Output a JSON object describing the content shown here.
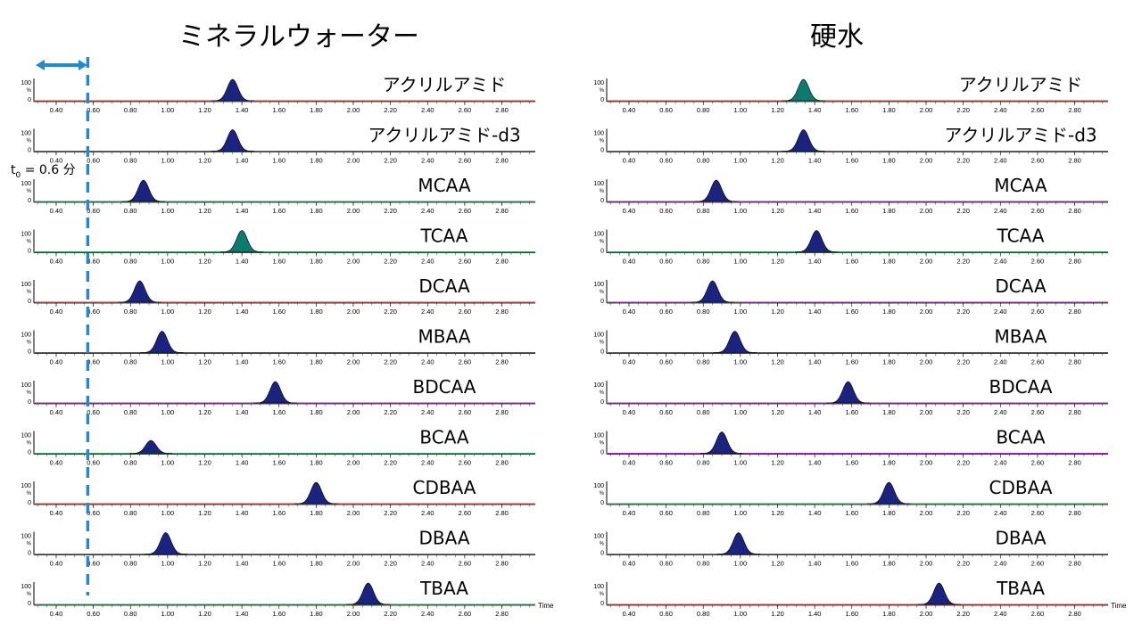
{
  "titles": {
    "left": "ミネラルウォーター",
    "right": "硬水"
  },
  "t0_annotation": {
    "prefix": "t",
    "subscript": "0",
    "text": "= 0.6 分",
    "value_min": 0.6
  },
  "colors": {
    "peak_fill": "#1a237e",
    "peak_fill_alt": "#0e7a6f",
    "baseline_red": "#e53935",
    "baseline_green": "#2e9d5a",
    "noise_violet": "#9c27b0",
    "t0_line": "#1f8ad6"
  },
  "chart_data": [
    {
      "panel": "ミネラルウォーター",
      "type": "line",
      "xlabel": "Time",
      "ylabel": "%",
      "ylim": [
        0,
        100
      ],
      "xlim": [
        0.28,
        2.98
      ],
      "xticks": [
        "0.40",
        "0.60",
        "0.80",
        "1.00",
        "1.20",
        "1.40",
        "1.60",
        "1.80",
        "2.00",
        "2.20",
        "2.40",
        "2.60",
        "2.80"
      ],
      "yticks": [
        "100",
        "0"
      ],
      "series": [
        {
          "name": "アクリルアミド",
          "peak_time": 1.35,
          "peak_height": 100,
          "peak_color": "#1a237e",
          "baseline_color": "#e53935"
        },
        {
          "name": "アクリルアミド-d3",
          "peak_time": 1.35,
          "peak_height": 100,
          "peak_color": "#1a237e",
          "baseline_color": "#e53935"
        },
        {
          "name": "MCAA",
          "peak_time": 0.87,
          "peak_height": 100,
          "peak_color": "#1a237e",
          "baseline_color": "#2e9d5a"
        },
        {
          "name": "TCAA",
          "peak_time": 1.4,
          "peak_height": 100,
          "peak_color": "#0e7a6f",
          "baseline_color": "#2e9d5a"
        },
        {
          "name": "DCAA",
          "peak_time": 0.85,
          "peak_height": 100,
          "peak_color": "#1a237e",
          "baseline_color": "#e53935"
        },
        {
          "name": "MBAA",
          "peak_time": 0.97,
          "peak_height": 100,
          "peak_color": "#1a237e",
          "baseline_color": "#9c27b0"
        },
        {
          "name": "BDCAA",
          "peak_time": 1.58,
          "peak_height": 100,
          "peak_color": "#1a237e",
          "baseline_color": "#9c27b0"
        },
        {
          "name": "BCAA",
          "peak_time": 0.91,
          "peak_height": 60,
          "peak_color": "#1a237e",
          "baseline_color": "#2e9d5a"
        },
        {
          "name": "CDBAA",
          "peak_time": 1.8,
          "peak_height": 100,
          "peak_color": "#1a237e",
          "baseline_color": "#e53935"
        },
        {
          "name": "DBAA",
          "peak_time": 0.99,
          "peak_height": 100,
          "peak_color": "#1a237e",
          "baseline_color": "#e53935"
        },
        {
          "name": "TBAA",
          "peak_time": 2.08,
          "peak_height": 100,
          "peak_color": "#1a237e",
          "baseline_color": "#2e9d5a"
        }
      ]
    },
    {
      "panel": "硬水",
      "type": "line",
      "xlabel": "Time",
      "ylabel": "%",
      "ylim": [
        0,
        100
      ],
      "xlim": [
        0.28,
        2.98
      ],
      "xticks": [
        "0.40",
        "0.60",
        "0.80",
        "1.00",
        "1.20",
        "1.40",
        "1.60",
        "1.80",
        "2.00",
        "2.20",
        "2.40",
        "2.60",
        "2.80"
      ],
      "yticks": [
        "100",
        "0"
      ],
      "series": [
        {
          "name": "アクリルアミド",
          "peak_time": 1.34,
          "peak_height": 100,
          "peak_color": "#0e7a6f",
          "baseline_color": "#e53935"
        },
        {
          "name": "アクリルアミド-d3",
          "peak_time": 1.34,
          "peak_height": 100,
          "peak_color": "#1a237e",
          "baseline_color": "#e53935"
        },
        {
          "name": "MCAA",
          "peak_time": 0.87,
          "peak_height": 100,
          "peak_color": "#1a237e",
          "baseline_color": "#9c27b0"
        },
        {
          "name": "TCAA",
          "peak_time": 1.41,
          "peak_height": 100,
          "peak_color": "#1a237e",
          "baseline_color": "#2e9d5a"
        },
        {
          "name": "DCAA",
          "peak_time": 0.85,
          "peak_height": 100,
          "peak_color": "#1a237e",
          "baseline_color": "#9c27b0"
        },
        {
          "name": "MBAA",
          "peak_time": 0.97,
          "peak_height": 100,
          "peak_color": "#1a237e",
          "baseline_color": "#9c27b0"
        },
        {
          "name": "BDCAA",
          "peak_time": 1.58,
          "peak_height": 100,
          "peak_color": "#1a237e",
          "baseline_color": "#9c27b0"
        },
        {
          "name": "BCAA",
          "peak_time": 0.9,
          "peak_height": 100,
          "peak_color": "#1a237e",
          "baseline_color": "#9c27b0"
        },
        {
          "name": "CDBAA",
          "peak_time": 1.8,
          "peak_height": 100,
          "peak_color": "#1a237e",
          "baseline_color": "#2e9d5a"
        },
        {
          "name": "DBAA",
          "peak_time": 0.99,
          "peak_height": 100,
          "peak_color": "#1a237e",
          "baseline_color": "#e53935"
        },
        {
          "name": "TBAA",
          "peak_time": 2.07,
          "peak_height": 100,
          "peak_color": "#1a237e",
          "baseline_color": "#e53935"
        }
      ]
    }
  ]
}
